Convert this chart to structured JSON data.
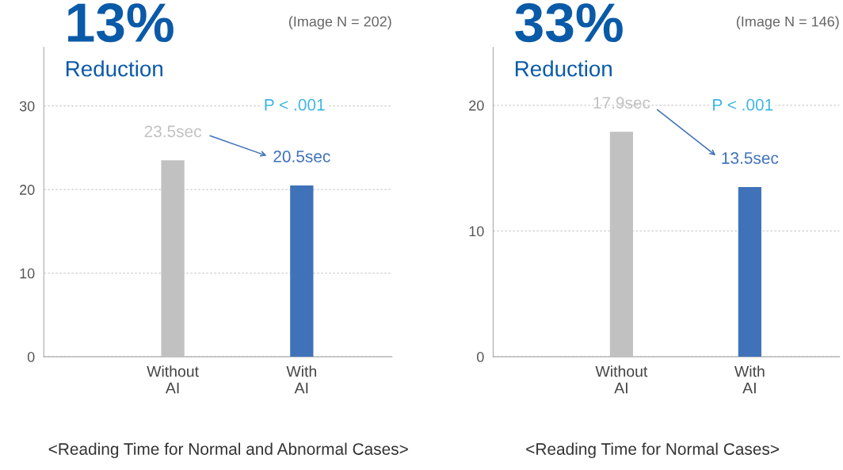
{
  "chart_data": [
    {
      "type": "bar",
      "title": "13%",
      "subtitle": "Reduction",
      "xlabel": "<Reading Time for Normal and Abnormal Cases>",
      "categories": [
        "Without\nAI",
        "With\nAI"
      ],
      "values": [
        23.5,
        20.5
      ],
      "colors": [
        "#c0c1c0",
        "#3f72b9"
      ],
      "value_labels": [
        "23.5sec",
        "20.5sec"
      ],
      "ylim": [
        0,
        37
      ],
      "yticks": [
        0,
        10,
        20,
        30
      ],
      "grid": "y",
      "legend": false,
      "annotations": [
        "(Image N = 202)",
        "P < .001"
      ]
    },
    {
      "type": "bar",
      "title": "33%",
      "subtitle": "Reduction",
      "xlabel": "<Reading Time for Normal Cases>",
      "categories": [
        "Without\nAI",
        "With\nAI"
      ],
      "values": [
        17.9,
        13.5
      ],
      "colors": [
        "#c0c1c0",
        "#3f72b9"
      ],
      "value_labels": [
        "17.9sec",
        "13.5sec"
      ],
      "ylim": [
        0,
        24.6
      ],
      "yticks": [
        0,
        10,
        20
      ],
      "grid": "y",
      "legend": false,
      "annotations": [
        "(Image N = 146)",
        "P < .001"
      ]
    }
  ]
}
